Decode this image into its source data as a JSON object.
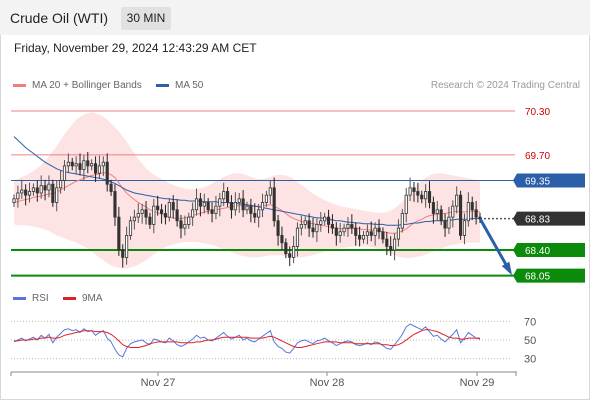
{
  "header": {
    "title": "Crude Oil (WTI)",
    "interval": "30 MIN"
  },
  "datetime": "Friday, November 29, 2024 12:43:29 AM CET",
  "legend": {
    "ma20_bb": "MA 20 + Bollinger Bands",
    "ma50": "MA 50",
    "credit": "Research © 2024 Trading Central"
  },
  "rsi_legend": {
    "rsi": "RSI",
    "ma9": "9MA"
  },
  "colors": {
    "resistance": "#f08080",
    "resistance_text": "#cc0000",
    "ma50": "#2b5fa8",
    "current": "#333333",
    "support": "#0b8a0b",
    "bollinger_fill": "#fde3e3",
    "rsi": "#5577dd",
    "rsi_ma": "#dd2222",
    "arrow": "#2b5fa8"
  },
  "chart_data": [
    {
      "type": "candlestick",
      "title": "Crude Oil (WTI)",
      "x_ticks": [
        "Nov 27",
        "Nov 28",
        "Nov 29"
      ],
      "price_levels": [
        {
          "value": 70.3,
          "label": "70.30",
          "kind": "resistance"
        },
        {
          "value": 69.7,
          "label": "69.70",
          "kind": "resistance"
        },
        {
          "value": 69.35,
          "label": "69.35",
          "kind": "ma50"
        },
        {
          "value": 68.83,
          "label": "68.83",
          "kind": "current"
        },
        {
          "value": 68.4,
          "label": "68.40",
          "kind": "support"
        },
        {
          "value": 68.05,
          "label": "68.05",
          "kind": "support"
        }
      ],
      "ylim": [
        67.95,
        70.45
      ],
      "close": [
        69.1,
        69.18,
        69.22,
        69.15,
        69.2,
        69.25,
        69.18,
        69.28,
        69.22,
        69.3,
        69.05,
        69.25,
        69.35,
        69.55,
        69.6,
        69.55,
        69.58,
        69.5,
        69.62,
        69.55,
        69.58,
        69.45,
        69.55,
        69.6,
        69.3,
        69.2,
        68.85,
        68.4,
        68.3,
        68.6,
        68.8,
        68.85,
        68.9,
        68.95,
        68.85,
        68.75,
        69.0,
        68.95,
        68.9,
        68.85,
        69.05,
        68.95,
        68.8,
        68.7,
        68.75,
        68.85,
        68.95,
        69.1,
        69.0,
        69.05,
        68.95,
        68.9,
        69.0,
        69.1,
        69.2,
        69.05,
        68.95,
        69.05,
        69.1,
        68.95,
        69.0,
        68.9,
        68.85,
        68.95,
        69.05,
        69.15,
        69.25,
        68.8,
        68.6,
        68.5,
        68.35,
        68.3,
        68.45,
        68.7,
        68.75,
        68.8,
        68.7,
        68.65,
        68.75,
        68.8,
        68.85,
        68.75,
        68.7,
        68.6,
        68.65,
        68.7,
        68.75,
        68.7,
        68.6,
        68.55,
        68.6,
        68.65,
        68.6,
        68.7,
        68.65,
        68.55,
        68.45,
        68.4,
        68.55,
        68.7,
        68.9,
        69.15,
        69.25,
        69.2,
        69.15,
        69.1,
        69.2,
        69.05,
        68.9,
        68.95,
        68.8,
        68.7,
        68.85,
        69.0,
        69.15,
        68.6,
        68.8,
        69.05,
        68.95,
        68.85,
        68.83
      ],
      "ma20": [
        69.05,
        69.06,
        69.08,
        69.09,
        69.1,
        69.12,
        69.13,
        69.14,
        69.15,
        69.17,
        69.17,
        69.19,
        69.22,
        69.25,
        69.28,
        69.31,
        69.34,
        69.36,
        69.38,
        69.4,
        69.42,
        69.43,
        69.44,
        69.46,
        69.45,
        69.43,
        69.39,
        69.32,
        69.24,
        69.18,
        69.13,
        69.09,
        69.05,
        69.02,
        68.99,
        68.95,
        68.93,
        68.91,
        68.89,
        68.87,
        68.85,
        68.84,
        68.83,
        68.83,
        68.84,
        68.85,
        68.87,
        68.89,
        68.9,
        68.92,
        68.93,
        68.94,
        68.95,
        68.96,
        68.97,
        68.98,
        68.99,
        69.0,
        69.01,
        69.01,
        69.01,
        69.01,
        69.0,
        69.0,
        69.0,
        69.01,
        69.02,
        69.0,
        68.97,
        68.94,
        68.9,
        68.86,
        68.83,
        68.81,
        68.79,
        68.78,
        68.77,
        68.76,
        68.75,
        68.74,
        68.73,
        68.72,
        68.71,
        68.7,
        68.69,
        68.69,
        68.69,
        68.7,
        68.7,
        68.69,
        68.68,
        68.68,
        68.67,
        68.67,
        68.66,
        68.65,
        68.64,
        68.63,
        68.63,
        68.64,
        68.66,
        68.69,
        68.73,
        68.77,
        68.8,
        68.82,
        68.85,
        68.87,
        68.88,
        68.89,
        68.9,
        68.9,
        68.91,
        68.92,
        68.93,
        68.92,
        68.92,
        68.93,
        68.93,
        68.93,
        68.92
      ],
      "ma50": [
        69.95,
        69.9,
        69.85,
        69.8,
        69.76,
        69.72,
        69.68,
        69.64,
        69.6,
        69.57,
        69.54,
        69.51,
        69.49,
        69.47,
        69.46,
        69.45,
        69.44,
        69.43,
        69.42,
        69.41,
        69.4,
        69.39,
        69.38,
        69.37,
        69.35,
        69.33,
        69.31,
        69.28,
        69.25,
        69.22,
        69.2,
        69.18,
        69.17,
        69.16,
        69.15,
        69.14,
        69.13,
        69.12,
        69.11,
        69.1,
        69.1,
        69.09,
        69.09,
        69.08,
        69.08,
        69.07,
        69.07,
        69.07,
        69.07,
        69.06,
        69.06,
        69.06,
        69.06,
        69.05,
        69.05,
        69.05,
        69.04,
        69.04,
        69.03,
        69.03,
        69.02,
        69.01,
        69.0,
        68.99,
        68.98,
        68.97,
        68.96,
        68.95,
        68.94,
        68.93,
        68.92,
        68.91,
        68.9,
        68.89,
        68.88,
        68.87,
        68.86,
        68.85,
        68.84,
        68.84,
        68.83,
        68.82,
        68.81,
        68.8,
        68.8,
        68.79,
        68.78,
        68.78,
        68.77,
        68.77,
        68.76,
        68.76,
        68.76,
        68.75,
        68.75,
        68.75,
        68.74,
        68.74,
        68.74,
        68.74,
        68.75,
        68.75,
        68.76,
        68.77,
        68.77,
        68.78,
        68.79,
        68.79,
        68.8,
        68.8,
        68.8,
        68.8,
        68.81,
        68.81,
        68.82,
        68.82,
        68.82,
        68.82,
        68.83,
        68.83,
        68.83
      ],
      "bb_upper": [
        69.35,
        69.37,
        69.4,
        69.42,
        69.45,
        69.48,
        69.52,
        69.56,
        69.62,
        69.68,
        69.75,
        69.82,
        69.9,
        69.98,
        70.05,
        70.12,
        70.18,
        70.22,
        70.25,
        70.27,
        70.28,
        70.27,
        70.25,
        70.22,
        70.18,
        70.13,
        70.08,
        70.02,
        69.95,
        69.88,
        69.8,
        69.72,
        69.64,
        69.58,
        69.52,
        69.47,
        69.43,
        69.4,
        69.37,
        69.34,
        69.31,
        69.29,
        69.27,
        69.25,
        69.24,
        69.23,
        69.23,
        69.23,
        69.24,
        69.26,
        69.28,
        69.31,
        69.34,
        69.37,
        69.4,
        69.42,
        69.44,
        69.45,
        69.45,
        69.44,
        69.42,
        69.4,
        69.38,
        69.37,
        69.37,
        69.38,
        69.4,
        69.42,
        69.43,
        69.43,
        69.42,
        69.4,
        69.37,
        69.33,
        69.29,
        69.25,
        69.21,
        69.17,
        69.14,
        69.11,
        69.08,
        69.06,
        69.04,
        69.02,
        69.0,
        68.99,
        68.98,
        68.97,
        68.96,
        68.95,
        68.94,
        68.93,
        68.92,
        68.91,
        68.91,
        68.91,
        68.92,
        68.94,
        68.97,
        69.01,
        69.06,
        69.12,
        69.18,
        69.24,
        69.3,
        69.35,
        69.39,
        69.42,
        69.44,
        69.45,
        69.45,
        69.44,
        69.43,
        69.42,
        69.41,
        69.4,
        69.39,
        69.38,
        69.37,
        69.36,
        69.35
      ],
      "bb_lower": [
        68.75,
        68.74,
        68.74,
        68.74,
        68.73,
        68.72,
        68.71,
        68.7,
        68.68,
        68.66,
        68.63,
        68.6,
        68.58,
        68.56,
        68.54,
        68.52,
        68.5,
        68.48,
        68.45,
        68.42,
        68.38,
        68.34,
        68.3,
        68.26,
        68.22,
        68.19,
        68.17,
        68.16,
        68.15,
        68.15,
        68.16,
        68.18,
        68.2,
        68.23,
        68.26,
        68.3,
        68.34,
        68.38,
        68.41,
        68.44,
        68.46,
        68.48,
        68.49,
        68.5,
        68.51,
        68.51,
        68.51,
        68.51,
        68.5,
        68.49,
        68.48,
        68.47,
        68.45,
        68.43,
        68.41,
        68.39,
        68.37,
        68.35,
        68.33,
        68.32,
        68.31,
        68.3,
        68.3,
        68.3,
        68.31,
        68.32,
        68.33,
        68.33,
        68.33,
        68.33,
        68.32,
        68.31,
        68.3,
        68.3,
        68.3,
        68.31,
        68.32,
        68.33,
        68.35,
        68.36,
        68.38,
        68.39,
        68.4,
        68.41,
        68.42,
        68.43,
        68.44,
        68.44,
        68.45,
        68.45,
        68.45,
        68.45,
        68.44,
        68.43,
        68.41,
        68.39,
        68.37,
        68.35,
        68.33,
        68.31,
        68.3,
        68.29,
        68.29,
        68.3,
        68.31,
        68.32,
        68.34,
        68.36,
        68.38,
        68.4,
        68.42,
        68.44,
        68.46,
        68.47,
        68.48,
        68.49,
        68.5,
        68.5,
        68.5,
        68.5,
        68.5
      ],
      "projection": {
        "from": 68.83,
        "to": 68.05
      }
    },
    {
      "type": "line",
      "title": "RSI",
      "y_ticks": [
        70,
        50,
        30
      ],
      "ylim": [
        20,
        80
      ],
      "series": [
        {
          "name": "RSI",
          "values": [
            48,
            50,
            52,
            49,
            51,
            53,
            50,
            55,
            52,
            56,
            47,
            53,
            57,
            61,
            62,
            60,
            61,
            58,
            62,
            59,
            60,
            55,
            58,
            60,
            52,
            48,
            40,
            34,
            32,
            41,
            46,
            48,
            49,
            50,
            47,
            45,
            51,
            50,
            48,
            47,
            52,
            49,
            45,
            43,
            45,
            48,
            51,
            55,
            52,
            53,
            50,
            49,
            52,
            55,
            58,
            54,
            51,
            53,
            55,
            50,
            52,
            49,
            48,
            51,
            54,
            57,
            60,
            48,
            43,
            41,
            37,
            36,
            41,
            47,
            49,
            50,
            48,
            46,
            49,
            50,
            52,
            49,
            47,
            44,
            46,
            48,
            49,
            48,
            45,
            44,
            45,
            47,
            45,
            48,
            47,
            44,
            41,
            40,
            45,
            50,
            56,
            64,
            67,
            65,
            63,
            61,
            64,
            59,
            54,
            55,
            51,
            48,
            52,
            56,
            61,
            47,
            52,
            58,
            55,
            52,
            51
          ]
        },
        {
          "name": "9MA",
          "values": [
            49,
            49,
            50,
            50,
            50,
            51,
            51,
            52,
            52,
            53,
            52,
            52,
            53,
            55,
            56,
            57,
            58,
            59,
            60,
            60,
            60,
            59,
            59,
            59,
            58,
            56,
            53,
            49,
            45,
            43,
            42,
            42,
            42,
            43,
            44,
            46,
            47,
            48,
            48,
            48,
            48,
            48,
            48,
            47,
            47,
            47,
            47,
            48,
            48,
            49,
            50,
            50,
            51,
            52,
            53,
            53,
            53,
            53,
            53,
            53,
            53,
            52,
            52,
            52,
            52,
            53,
            54,
            53,
            51,
            49,
            47,
            45,
            43,
            42,
            42,
            43,
            44,
            45,
            46,
            47,
            48,
            48,
            48,
            48,
            47,
            47,
            47,
            47,
            46,
            46,
            46,
            46,
            46,
            46,
            46,
            45,
            45,
            44,
            44,
            45,
            47,
            50,
            53,
            56,
            58,
            60,
            61,
            61,
            60,
            59,
            57,
            55,
            53,
            52,
            52,
            51,
            51,
            52,
            52,
            52,
            52
          ]
        }
      ]
    }
  ]
}
